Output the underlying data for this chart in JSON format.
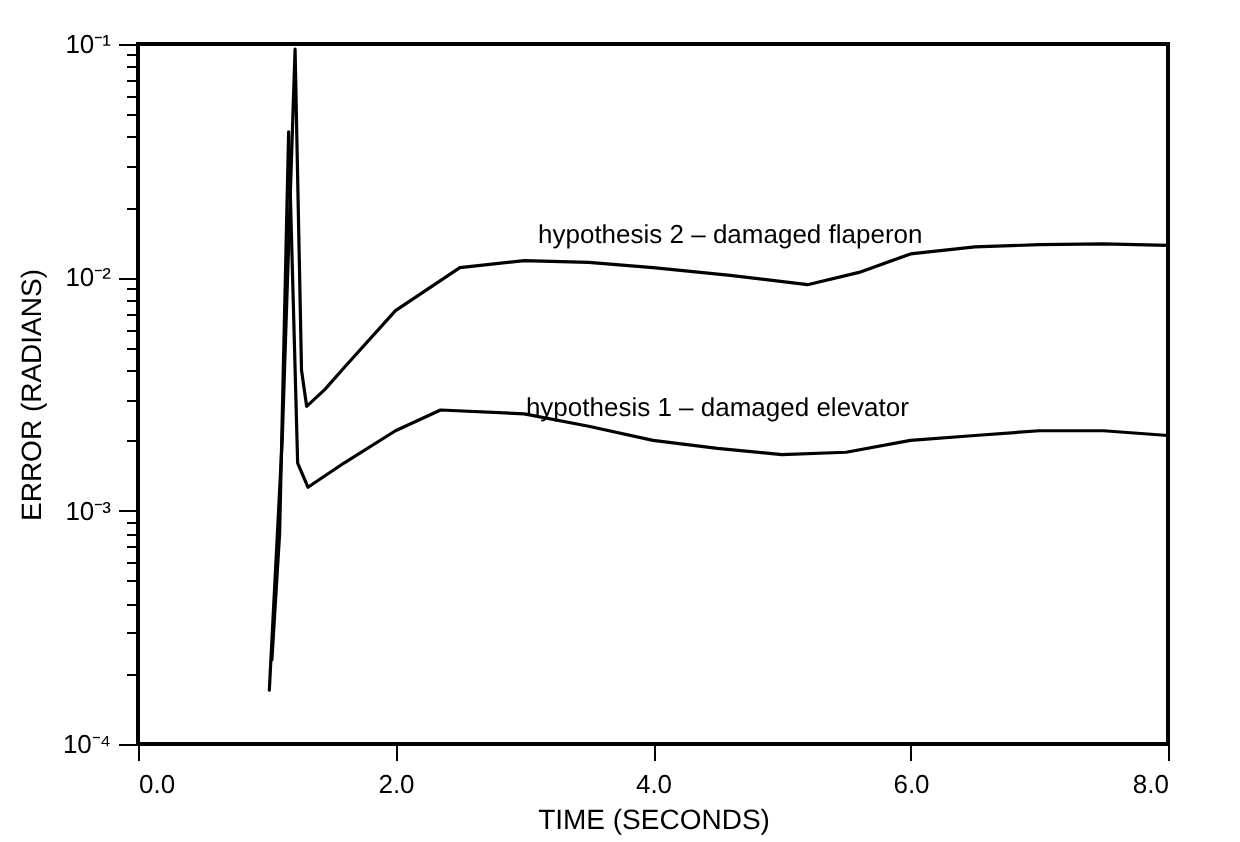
{
  "chart_data": {
    "type": "line",
    "xlabel": "TIME (SECONDS)",
    "ylabel": "ERROR (RADIANS)",
    "log": "y",
    "legend": false,
    "marker": "none",
    "line_style": "solid",
    "xlim": [
      0,
      8
    ],
    "ylim": [
      0.0001,
      0.1
    ],
    "xticks": [
      {
        "value": 0,
        "label": "0.0"
      },
      {
        "value": 2,
        "label": "2.0"
      },
      {
        "value": 4,
        "label": "4.0"
      },
      {
        "value": 6,
        "label": "6.0"
      },
      {
        "value": 8,
        "label": "8.0"
      }
    ],
    "yticks": [
      {
        "value": 0.0001,
        "label": "10⁻⁴"
      },
      {
        "value": 0.0002,
        "label": null
      },
      {
        "value": 0.0003,
        "label": null
      },
      {
        "value": 0.0004,
        "label": null
      },
      {
        "value": 0.0005,
        "label": null
      },
      {
        "value": 0.0006,
        "label": null
      },
      {
        "value": 0.0007,
        "label": null
      },
      {
        "value": 0.0008,
        "label": null
      },
      {
        "value": 0.0009,
        "label": null
      },
      {
        "value": 0.001,
        "label": "10⁻³"
      },
      {
        "value": 0.002,
        "label": null
      },
      {
        "value": 0.003,
        "label": null
      },
      {
        "value": 0.004,
        "label": null
      },
      {
        "value": 0.005,
        "label": null
      },
      {
        "value": 0.006,
        "label": null
      },
      {
        "value": 0.007,
        "label": null
      },
      {
        "value": 0.008,
        "label": null
      },
      {
        "value": 0.009,
        "label": null
      },
      {
        "value": 0.01,
        "label": "10⁻²"
      },
      {
        "value": 0.02,
        "label": null
      },
      {
        "value": 0.03,
        "label": null
      },
      {
        "value": 0.04,
        "label": null
      },
      {
        "value": 0.05,
        "label": null
      },
      {
        "value": 0.06,
        "label": null
      },
      {
        "value": 0.07,
        "label": null
      },
      {
        "value": 0.08,
        "label": null
      },
      {
        "value": 0.09,
        "label": null
      },
      {
        "value": 0.1,
        "label": "10⁻¹"
      }
    ],
    "series": [
      {
        "name": "hypothesis 2 – damaged flaperon",
        "color": "#000000",
        "x": [
          1.02,
          1.12,
          1.22,
          1.27,
          1.31,
          1.45,
          1.6,
          2.0,
          2.5,
          3.0,
          3.5,
          4.0,
          4.6,
          5.2,
          5.6,
          6.0,
          6.5,
          7.0,
          7.5,
          8.0
        ],
        "values": [
          0.00017,
          0.002,
          0.095,
          0.004,
          0.0028,
          0.0033,
          0.0041,
          0.0072,
          0.011,
          0.0118,
          0.0116,
          0.011,
          0.0102,
          0.0093,
          0.0105,
          0.0126,
          0.0135,
          0.0138,
          0.0139,
          0.0137
        ]
      },
      {
        "name": "hypothesis 1 – damaged elevator",
        "color": "#000000",
        "x": [
          1.04,
          1.1,
          1.17,
          1.24,
          1.32,
          1.6,
          2.0,
          2.35,
          3.0,
          3.5,
          4.0,
          4.5,
          5.0,
          5.5,
          6.0,
          6.5,
          7.0,
          7.5,
          8.0
        ],
        "values": [
          0.00023,
          0.0008,
          0.042,
          0.0016,
          0.00126,
          0.0016,
          0.0022,
          0.0027,
          0.0026,
          0.0023,
          0.002,
          0.00185,
          0.00174,
          0.00178,
          0.002,
          0.0021,
          0.0022,
          0.0022,
          0.0021
        ]
      }
    ]
  }
}
